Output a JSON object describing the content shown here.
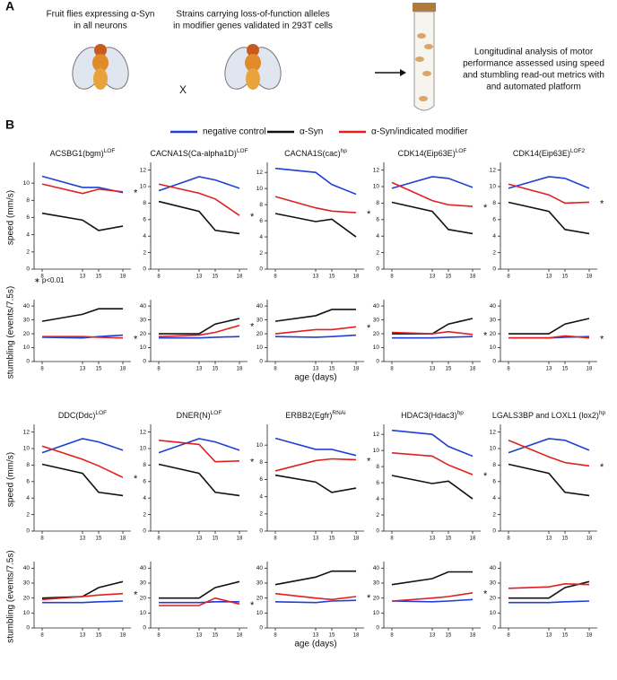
{
  "figure": {
    "label_a": "A",
    "label_b": "B",
    "flies_text": [
      "Fruit flies expressing α-Syn",
      "in all neurons"
    ],
    "cross": "X",
    "strains_text": [
      "Strains carrying loss-of-function alleles",
      "in modifier genes validated in 293T cells"
    ],
    "analysis_text": [
      "Longitudinal analysis of motor",
      "performance assessed using speed",
      "and stumbling read-out metrics with",
      "and automated platform"
    ],
    "significance": "∗ p<0.01",
    "legend": [
      {
        "name": "negative control",
        "color": "#1f3fd6"
      },
      {
        "name": "α-Syn",
        "color": "#111111"
      },
      {
        "name": "α-Syn/indicated modifier",
        "color": "#e02020"
      }
    ],
    "speed_label": "speed (mm/s)",
    "stumbling_label": "stumbling (events/7.5s)",
    "age_label": "age (days)"
  },
  "chart_data": [
    {
      "type": "line",
      "title": "ACSBG1(bgm)",
      "title_sup": "LOF",
      "x": [
        8,
        13,
        15,
        18
      ],
      "xticks": [
        8,
        13,
        15,
        18
      ],
      "xlim": [
        7,
        19
      ],
      "ylim": [
        0,
        12
      ],
      "yticks": [
        0,
        2,
        4,
        6,
        8,
        10
      ],
      "series": [
        {
          "values": [
            10.8,
            9.5,
            9.5,
            8.9
          ]
        },
        {
          "values": [
            6.5,
            5.7,
            4.5,
            5.0
          ]
        },
        {
          "values": [
            9.9,
            8.8,
            9.3,
            9.0
          ]
        }
      ],
      "annotation": "*"
    },
    {
      "type": "line",
      "x": [
        8,
        13,
        15,
        18
      ],
      "xticks": [
        8,
        13,
        15,
        18
      ],
      "xlim": [
        7,
        19
      ],
      "ylim": [
        0,
        42
      ],
      "yticks": [
        0,
        10,
        20,
        30,
        40
      ],
      "series": [
        {
          "values": [
            17.5,
            17,
            18,
            19
          ]
        },
        {
          "values": [
            29,
            34,
            38,
            38
          ]
        },
        {
          "values": [
            18,
            18,
            17.5,
            17
          ]
        }
      ],
      "annotation": "*"
    },
    {
      "type": "line",
      "title": "CACNA1S(Ca-alpha1D)",
      "title_sup": "LOF",
      "x": [
        8,
        13,
        15,
        18
      ],
      "xticks": [
        8,
        13,
        15,
        18
      ],
      "xlim": [
        7,
        19
      ],
      "ylim": [
        0,
        12.5
      ],
      "yticks": [
        0,
        2,
        4,
        6,
        8,
        10,
        12
      ],
      "series": [
        {
          "values": [
            9.5,
            11.2,
            10.8,
            9.8
          ]
        },
        {
          "values": [
            8.2,
            7,
            4.7,
            4.3
          ]
        },
        {
          "values": [
            10.3,
            9.2,
            8.5,
            6.5
          ]
        }
      ],
      "annotation": "*"
    },
    {
      "type": "line",
      "x": [
        8,
        13,
        15,
        18
      ],
      "xticks": [
        8,
        13,
        15,
        18
      ],
      "xlim": [
        7,
        19
      ],
      "ylim": [
        0,
        42
      ],
      "yticks": [
        0,
        10,
        20,
        30,
        40
      ],
      "series": [
        {
          "values": [
            17,
            17,
            17.5,
            18
          ]
        },
        {
          "values": [
            20,
            20,
            27,
            31
          ]
        },
        {
          "values": [
            18,
            19,
            21,
            26
          ]
        }
      ],
      "annotation": "*"
    },
    {
      "type": "line",
      "title": "CACNA1S(cac)",
      "title_sup": "hp",
      "x": [
        8,
        13,
        15,
        18
      ],
      "xticks": [
        8,
        13,
        15,
        18
      ],
      "xlim": [
        7,
        19
      ],
      "ylim": [
        0,
        12.8
      ],
      "yticks": [
        0,
        2,
        4,
        6,
        8,
        10,
        12
      ],
      "series": [
        {
          "values": [
            12.5,
            12,
            10.5,
            9.3
          ]
        },
        {
          "values": [
            6.9,
            5.9,
            6.2,
            4
          ]
        },
        {
          "values": [
            9,
            7.6,
            7.2,
            7
          ]
        }
      ],
      "annotation": "*"
    },
    {
      "type": "line",
      "x": [
        8,
        13,
        15,
        18
      ],
      "xticks": [
        8,
        13,
        15,
        18
      ],
      "xlim": [
        7,
        19
      ],
      "ylim": [
        0,
        42
      ],
      "yticks": [
        0,
        10,
        20,
        30,
        40
      ],
      "series": [
        {
          "values": [
            18,
            17.5,
            18,
            19
          ]
        },
        {
          "values": [
            29,
            33,
            37.5,
            37.5
          ]
        },
        {
          "values": [
            20,
            23,
            23,
            25
          ]
        }
      ],
      "annotation": "*"
    },
    {
      "type": "line",
      "title": "CDK14(Eip63E)",
      "title_sup": "LOF",
      "x": [
        8,
        13,
        15,
        18
      ],
      "xticks": [
        8,
        13,
        15,
        18
      ],
      "xlim": [
        7,
        19
      ],
      "ylim": [
        0,
        12.5
      ],
      "yticks": [
        0,
        2,
        4,
        6,
        8,
        10,
        12
      ],
      "series": [
        {
          "values": [
            9.8,
            11.2,
            11,
            9.9
          ]
        },
        {
          "values": [
            8.1,
            7,
            4.8,
            4.3
          ]
        },
        {
          "values": [
            10.5,
            8.3,
            7.8,
            7.6
          ]
        }
      ],
      "annotation": "*"
    },
    {
      "type": "line",
      "x": [
        8,
        13,
        15,
        18
      ],
      "xticks": [
        8,
        13,
        15,
        18
      ],
      "xlim": [
        7,
        19
      ],
      "ylim": [
        0,
        42
      ],
      "yticks": [
        0,
        10,
        20,
        30,
        40
      ],
      "series": [
        {
          "values": [
            17,
            17,
            17.5,
            18
          ]
        },
        {
          "values": [
            20,
            20,
            27,
            31
          ]
        },
        {
          "values": [
            21,
            20,
            21.5,
            19.5
          ]
        }
      ],
      "annotation": "*"
    },
    {
      "type": "line",
      "title": "CDK14(Eip63E)",
      "title_sup": "LOF2",
      "x": [
        8,
        13,
        15,
        18
      ],
      "xticks": [
        8,
        13,
        15,
        18
      ],
      "xlim": [
        7,
        19
      ],
      "ylim": [
        0,
        12.5
      ],
      "yticks": [
        0,
        2,
        4,
        6,
        8,
        10,
        12
      ],
      "series": [
        {
          "values": [
            9.8,
            11.2,
            11,
            9.8
          ]
        },
        {
          "values": [
            8.1,
            7,
            4.8,
            4.3
          ]
        },
        {
          "values": [
            10.3,
            9,
            8,
            8.1
          ]
        }
      ],
      "annotation": "*"
    },
    {
      "type": "line",
      "x": [
        8,
        13,
        15,
        18
      ],
      "xticks": [
        8,
        13,
        15,
        18
      ],
      "xlim": [
        7,
        19
      ],
      "ylim": [
        0,
        42
      ],
      "yticks": [
        0,
        10,
        20,
        30,
        40
      ],
      "series": [
        {
          "values": [
            17,
            17,
            17.5,
            18
          ]
        },
        {
          "values": [
            20,
            20,
            27,
            31
          ]
        },
        {
          "values": [
            17,
            17,
            18.5,
            17
          ]
        }
      ],
      "annotation": "*"
    },
    {
      "type": "line",
      "title": "DDC(Ddc)",
      "title_sup": "LOF",
      "x": [
        8,
        13,
        15,
        18
      ],
      "xticks": [
        8,
        13,
        15,
        18
      ],
      "xlim": [
        7,
        19
      ],
      "ylim": [
        0,
        12.5
      ],
      "yticks": [
        0,
        2,
        4,
        6,
        8,
        10,
        12
      ],
      "series": [
        {
          "values": [
            9.5,
            11.2,
            10.8,
            9.8
          ]
        },
        {
          "values": [
            8.1,
            7,
            4.7,
            4.3
          ]
        },
        {
          "values": [
            10.3,
            8.7,
            7.9,
            6.5
          ]
        }
      ],
      "annotation": "*"
    },
    {
      "type": "line",
      "x": [
        8,
        13,
        15,
        18
      ],
      "xticks": [
        8,
        13,
        15,
        18
      ],
      "xlim": [
        7,
        19
      ],
      "ylim": [
        0,
        42
      ],
      "yticks": [
        0,
        10,
        20,
        30,
        40
      ],
      "series": [
        {
          "values": [
            17,
            17,
            17.5,
            18
          ]
        },
        {
          "values": [
            20,
            21,
            27,
            31
          ]
        },
        {
          "values": [
            19,
            21,
            22,
            23
          ]
        }
      ],
      "annotation": "*"
    },
    {
      "type": "line",
      "title": "DNER(N)",
      "title_sup": "LOF",
      "x": [
        8,
        13,
        15,
        18
      ],
      "xticks": [
        8,
        13,
        15,
        18
      ],
      "xlim": [
        7,
        19
      ],
      "ylim": [
        0,
        12.5
      ],
      "yticks": [
        0,
        2,
        4,
        6,
        8,
        10,
        12
      ],
      "series": [
        {
          "values": [
            9.5,
            11.2,
            10.8,
            9.8
          ]
        },
        {
          "values": [
            8.1,
            7,
            4.7,
            4.3
          ]
        },
        {
          "values": [
            11,
            10.5,
            8.4,
            8.5
          ]
        }
      ],
      "annotation": "*"
    },
    {
      "type": "line",
      "x": [
        8,
        13,
        15,
        18
      ],
      "xticks": [
        8,
        13,
        15,
        18
      ],
      "xlim": [
        7,
        19
      ],
      "ylim": [
        0,
        42
      ],
      "yticks": [
        0,
        10,
        20,
        30,
        40
      ],
      "series": [
        {
          "values": [
            17,
            17,
            17.5,
            17.5
          ]
        },
        {
          "values": [
            20,
            20,
            27,
            31
          ]
        },
        {
          "values": [
            15,
            15,
            20,
            16
          ]
        }
      ],
      "annotation": "*"
    },
    {
      "type": "line",
      "title": "ERBB2(Egfr)",
      "title_sup": "RNAi",
      "x": [
        8,
        13,
        15,
        18
      ],
      "xticks": [
        8,
        13,
        15,
        18
      ],
      "xlim": [
        7,
        19
      ],
      "ylim": [
        0,
        12
      ],
      "yticks": [
        0,
        2,
        4,
        6,
        8,
        10
      ],
      "series": [
        {
          "values": [
            10.8,
            9.5,
            9.5,
            8.8
          ]
        },
        {
          "values": [
            6.5,
            5.7,
            4.5,
            5.0
          ]
        },
        {
          "values": [
            7,
            8.2,
            8.4,
            8.3
          ]
        }
      ],
      "annotation": "*"
    },
    {
      "type": "line",
      "x": [
        8,
        13,
        15,
        18
      ],
      "xticks": [
        8,
        13,
        15,
        18
      ],
      "xlim": [
        7,
        19
      ],
      "ylim": [
        0,
        42
      ],
      "yticks": [
        0,
        10,
        20,
        30,
        40
      ],
      "series": [
        {
          "values": [
            17.5,
            17,
            18,
            18.5
          ]
        },
        {
          "values": [
            29,
            34,
            38,
            38
          ]
        },
        {
          "values": [
            23,
            20,
            19,
            21
          ]
        }
      ],
      "annotation": "*"
    },
    {
      "type": "line",
      "title": "HDAC3(Hdac3)",
      "title_sup": "hp",
      "x": [
        8,
        13,
        15,
        18
      ],
      "xticks": [
        8,
        13,
        15,
        18
      ],
      "xlim": [
        7,
        19
      ],
      "ylim": [
        0,
        12.8
      ],
      "yticks": [
        0,
        2,
        4,
        6,
        8,
        10,
        12
      ],
      "series": [
        {
          "values": [
            12.5,
            12,
            10.5,
            9.3
          ]
        },
        {
          "values": [
            6.9,
            5.9,
            6.2,
            4
          ]
        },
        {
          "values": [
            9.7,
            9.3,
            8.2,
            7
          ]
        }
      ],
      "annotation": "*"
    },
    {
      "type": "line",
      "x": [
        8,
        13,
        15,
        18
      ],
      "xticks": [
        8,
        13,
        15,
        18
      ],
      "xlim": [
        7,
        19
      ],
      "ylim": [
        0,
        42
      ],
      "yticks": [
        0,
        10,
        20,
        30,
        40
      ],
      "series": [
        {
          "values": [
            18,
            17.5,
            18,
            19
          ]
        },
        {
          "values": [
            29,
            33,
            37.5,
            37.5
          ]
        },
        {
          "values": [
            18,
            20,
            21,
            23.5
          ]
        }
      ],
      "annotation": "*"
    },
    {
      "type": "line",
      "title": "LGALS3BP and LOXL1 (lox2)",
      "title_sup": "hp",
      "x": [
        8,
        13,
        15,
        18
      ],
      "xticks": [
        8,
        13,
        15,
        18
      ],
      "xlim": [
        7,
        19
      ],
      "ylim": [
        0,
        12.5
      ],
      "yticks": [
        0,
        2,
        4,
        6,
        8,
        10,
        12
      ],
      "series": [
        {
          "values": [
            9.5,
            11.2,
            11,
            9.8
          ]
        },
        {
          "values": [
            8.1,
            7,
            4.7,
            4.3
          ]
        },
        {
          "values": [
            11,
            9,
            8.3,
            7.9
          ]
        }
      ],
      "annotation": "*"
    },
    {
      "type": "line",
      "x": [
        8,
        13,
        15,
        18
      ],
      "xticks": [
        8,
        13,
        15,
        18
      ],
      "xlim": [
        7,
        19
      ],
      "ylim": [
        0,
        42
      ],
      "yticks": [
        0,
        10,
        20,
        30,
        40
      ],
      "series": [
        {
          "values": [
            17,
            17,
            17.5,
            18
          ]
        },
        {
          "values": [
            20,
            20,
            27,
            31
          ]
        },
        {
          "values": [
            26.5,
            27.5,
            29.5,
            29
          ]
        }
      ]
    }
  ]
}
